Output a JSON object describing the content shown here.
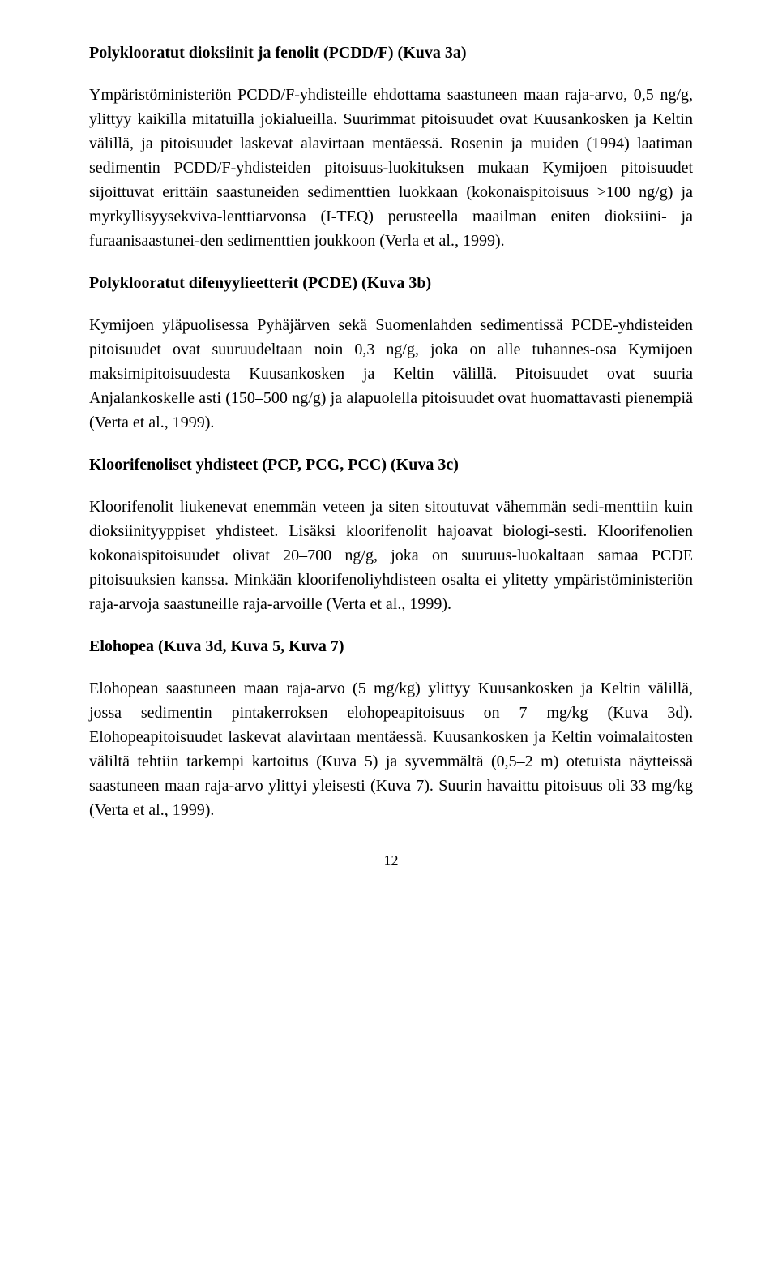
{
  "sections": [
    {
      "heading": "Polyklooratut dioksiinit ja fenolit (PCDD/F) (Kuva 3a)",
      "paragraphs": [
        "Ympäristöministeriön PCDD/F-yhdisteille ehdottama saastuneen maan raja-arvo, 0,5 ng/g, ylittyy kaikilla mitatuilla jokialueilla. Suurimmat pitoisuudet ovat Kuusankosken ja Keltin välillä, ja pitoisuudet laskevat alavirtaan mentäessä. Rosenin ja muiden (1994) laatiman sedimentin PCDD/F-yhdisteiden pitoisuus-luokituksen mukaan Kymijoen pitoisuudet sijoittuvat erittäin saastuneiden sedimenttien luokkaan (kokonaispitoisuus >100 ng/g) ja myrkyllisyysekviva-lenttiarvonsa (I-TEQ) perusteella maailman eniten dioksiini- ja furaanisaastunei-den sedimenttien joukkoon (Verla et al., 1999)."
      ]
    },
    {
      "heading": "Polyklooratut difenyylieetterit (PCDE) (Kuva 3b)",
      "paragraphs": [
        "Kymijoen yläpuolisessa Pyhäjärven sekä Suomenlahden sedimentissä PCDE-yhdisteiden pitoisuudet ovat suuruudeltaan noin 0,3 ng/g, joka on alle tuhannes-osa Kymijoen maksimipitoisuudesta Kuusankosken ja Keltin välillä. Pitoisuudet ovat suuria Anjalankoskelle asti (150–500 ng/g) ja alapuolella pitoisuudet ovat huomattavasti pienempiä (Verta et al., 1999)."
      ]
    },
    {
      "heading": "Kloorifenoliset yhdisteet (PCP, PCG, PCC) (Kuva 3c)",
      "paragraphs": [
        "Kloorifenolit liukenevat enemmän veteen ja siten sitoutuvat vähemmän sedi-menttiin kuin dioksiinityyppiset yhdisteet. Lisäksi kloorifenolit hajoavat biologi-sesti. Kloorifenolien kokonaispitoisuudet olivat 20–700 ng/g, joka on suuruus-luokaltaan samaa PCDE pitoisuuksien kanssa. Minkään kloorifenoliyhdisteen osalta ei ylitetty ympäristöministeriön raja-arvoja saastuneille raja-arvoille (Verta et al., 1999)."
      ]
    },
    {
      "heading": "Elohopea (Kuva 3d, Kuva 5, Kuva 7)",
      "paragraphs": [
        "Elohopean saastuneen maan raja-arvo (5 mg/kg) ylittyy Kuusankosken ja Keltin välillä, jossa sedimentin pintakerroksen elohopeapitoisuus on 7 mg/kg (Kuva 3d). Elohopeapitoisuudet laskevat alavirtaan mentäessä. Kuusankosken ja Keltin voimalaitosten väliltä tehtiin tarkempi kartoitus (Kuva 5) ja syvemmältä (0,5–2 m) otetuista näytteissä saastuneen maan raja-arvo ylittyi yleisesti (Kuva 7). Suurin havaittu pitoisuus oli 33 mg/kg (Verta et al., 1999)."
      ]
    }
  ],
  "page_number": "12"
}
